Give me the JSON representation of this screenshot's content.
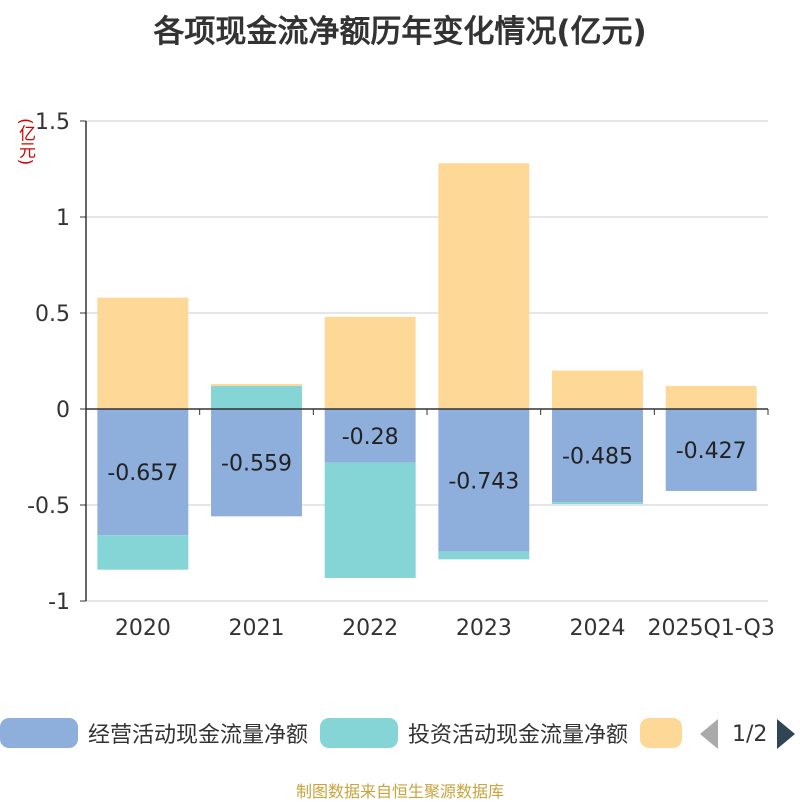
{
  "chart_data": {
    "type": "bar",
    "stacked": true,
    "title": "各项现金流净额历年变化情况(亿元)",
    "unit_label": "(亿元)",
    "categories": [
      "2020",
      "2021",
      "2022",
      "2023",
      "2024",
      "2025Q1-Q3"
    ],
    "ylim": [
      -1,
      1.5
    ],
    "yticks": [
      -1,
      -0.5,
      0,
      0.5,
      1,
      1.5
    ],
    "ytick_labels": [
      "-1",
      "-0.5",
      "0",
      "0.5",
      "1",
      "1.5"
    ],
    "grid": true,
    "legend_position": "bottom",
    "series": [
      {
        "name": "经营活动现金流量净额",
        "color": "#8eaedc",
        "values": [
          -0.657,
          -0.559,
          -0.28,
          -0.743,
          -0.485,
          -0.427
        ],
        "data_labels": [
          "-0.657",
          "-0.559",
          "-0.28",
          "-0.743",
          "-0.485",
          "-0.427"
        ]
      },
      {
        "name": "投资活动现金流量净额",
        "color": "#86d5d6",
        "values": [
          -0.18,
          0.12,
          -0.6,
          -0.04,
          -0.01,
          0.0
        ]
      },
      {
        "name": "",
        "color": "#fdd897",
        "values": [
          0.58,
          0.01,
          0.48,
          1.28,
          0.2,
          0.12
        ]
      }
    ]
  },
  "legend": {
    "items": [
      {
        "label": "经营活动现金流量净额",
        "color": "#8eaedc"
      },
      {
        "label": "投资活动现金流量净额",
        "color": "#86d5d6"
      },
      {
        "label": "",
        "color": "#fdd897"
      }
    ],
    "page_text": "1/2"
  },
  "source": "制图数据来自恒生聚源数据库"
}
